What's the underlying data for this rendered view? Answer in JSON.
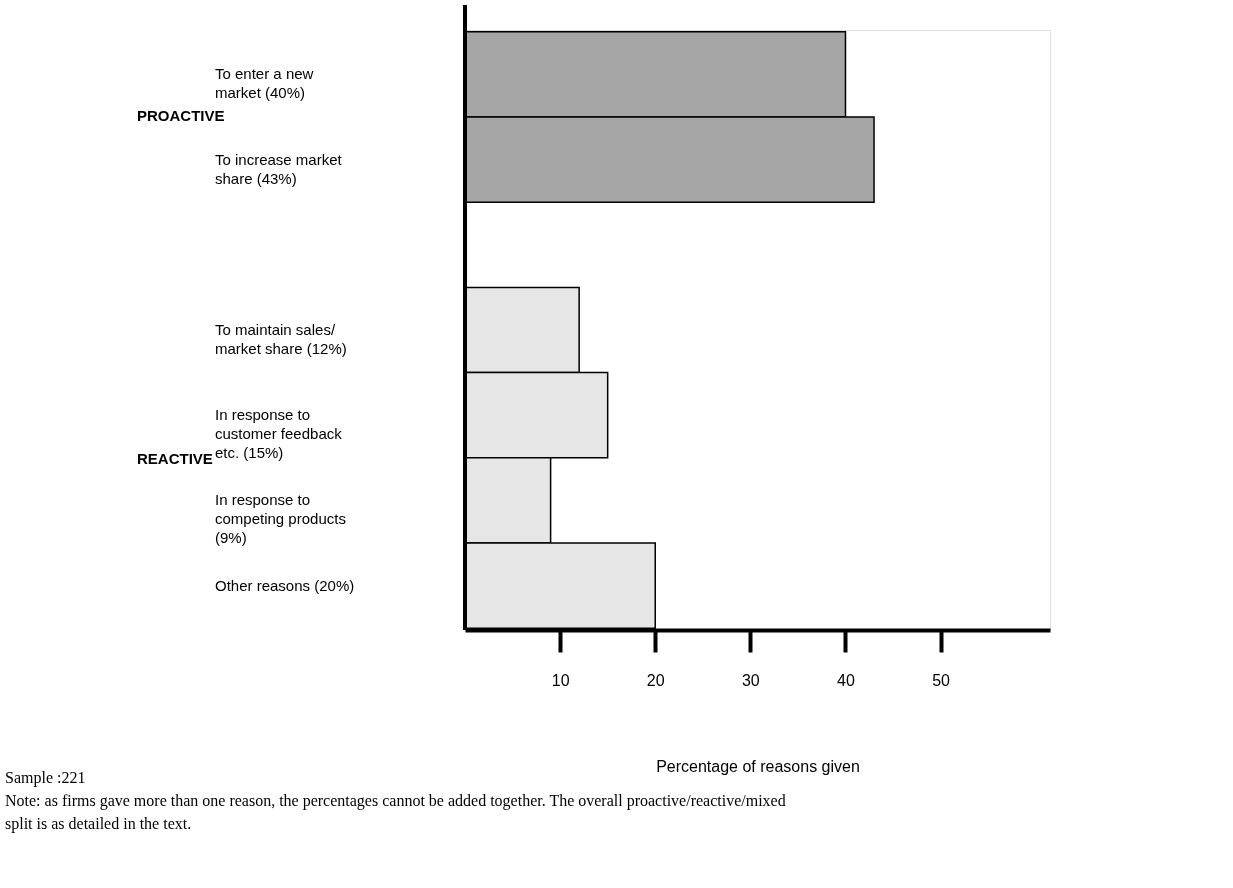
{
  "chart_data": {
    "type": "bar",
    "orientation": "horizontal",
    "categories": [
      "To enter a new market (40%)",
      "To increase market share (43%)",
      null,
      "To maintain sales/ market share (12%)",
      "In response to customer feedback etc. (15%)",
      "In response to competing products (9%)",
      "Other reasons (20%)"
    ],
    "values": [
      40,
      43,
      null,
      12,
      15,
      9,
      20
    ],
    "colors": [
      "#a6a6a6",
      "#a6a6a6",
      null,
      "#e6e6e6",
      "#e6e6e6",
      "#e6e6e6",
      "#e6e6e6"
    ],
    "xlabel": "Percentage of reasons given",
    "xlim": [
      0,
      61.5
    ],
    "xticks": [
      10,
      20,
      30,
      40,
      50
    ],
    "grid": false,
    "annotations": [
      "PROACTIVE",
      "REACTIVE",
      "Sample :221",
      "Note: as firms gave more than one reason, the percentages cannot be added together. The overall proactive/reactive/mixed split is as detailed in the text."
    ]
  }
}
